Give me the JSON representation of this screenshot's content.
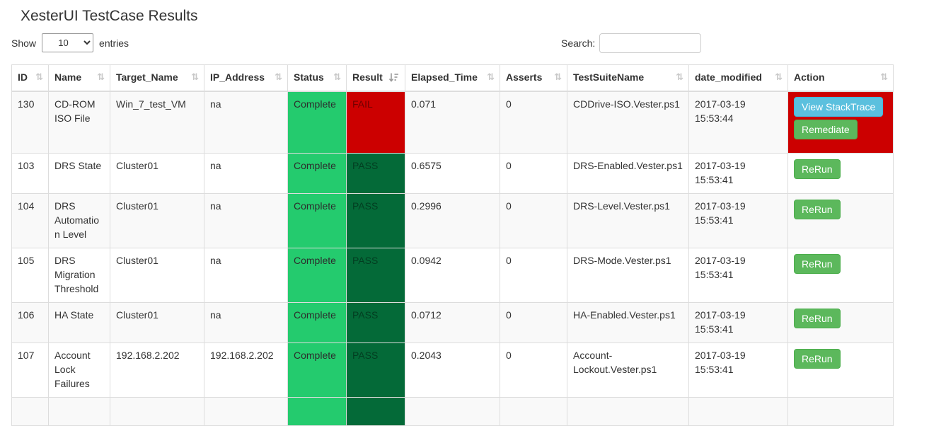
{
  "page": {
    "title": "XesterUI TestCase Results"
  },
  "controls": {
    "show_label": "Show",
    "entries_label": "entries",
    "page_size_selected": "10",
    "search_label": "Search:",
    "search_value": ""
  },
  "icons": {
    "sort_both": "⇅",
    "sort_amount_desc": "sort-amount-desc-icon",
    "select_chevron": "⌄"
  },
  "colors": {
    "status_complete_bg": "#24cb6e",
    "result_pass_bg": "#046a38",
    "result_fail_bg": "#cc0000",
    "action_alert_bg": "#cc0000",
    "button_info": "#5bc0de",
    "button_success": "#5cb85c",
    "header_text": "#333333",
    "stripe_row": "#f9f9f9",
    "table_border": "#dddddd"
  },
  "table": {
    "columns": [
      {
        "label": "ID",
        "sorted": false
      },
      {
        "label": "Name",
        "sorted": false
      },
      {
        "label": "Target_Name",
        "sorted": false
      },
      {
        "label": "IP_Address",
        "sorted": false
      },
      {
        "label": "Status",
        "sorted": false
      },
      {
        "label": "Result",
        "sorted": true
      },
      {
        "label": "Elapsed_Time",
        "sorted": false
      },
      {
        "label": "Asserts",
        "sorted": false
      },
      {
        "label": "TestSuiteName",
        "sorted": false
      },
      {
        "label": "date_modified",
        "sorted": false
      },
      {
        "label": "Action",
        "sorted": false
      }
    ],
    "rows": [
      {
        "id": "130",
        "name": "CD-ROM ISO File",
        "target_name": "Win_7_test_VM",
        "ip_address": "na",
        "status": "Complete",
        "result": "FAIL",
        "elapsed_time": "0.071",
        "asserts": "0",
        "test_suite_name": "CDDrive-ISO.Vester.ps1",
        "date_modified": "2017-03-19 15:53:44",
        "action_alert": true,
        "actions": [
          {
            "label": "View StackTrace",
            "type": "info",
            "name": "view-stacktrace-button"
          },
          {
            "label": "Remediate",
            "type": "success",
            "name": "remediate-button"
          }
        ]
      },
      {
        "id": "103",
        "name": "DRS State",
        "target_name": "Cluster01",
        "ip_address": "na",
        "status": "Complete",
        "result": "PASS",
        "elapsed_time": "0.6575",
        "asserts": "0",
        "test_suite_name": "DRS-Enabled.Vester.ps1",
        "date_modified": "2017-03-19 15:53:41",
        "action_alert": false,
        "actions": [
          {
            "label": "ReRun",
            "type": "success",
            "name": "rerun-button"
          }
        ]
      },
      {
        "id": "104",
        "name": "DRS Automation Level",
        "target_name": "Cluster01",
        "ip_address": "na",
        "status": "Complete",
        "result": "PASS",
        "elapsed_time": "0.2996",
        "asserts": "0",
        "test_suite_name": "DRS-Level.Vester.ps1",
        "date_modified": "2017-03-19 15:53:41",
        "action_alert": false,
        "actions": [
          {
            "label": "ReRun",
            "type": "success",
            "name": "rerun-button"
          }
        ]
      },
      {
        "id": "105",
        "name": "DRS Migration Threshold",
        "target_name": "Cluster01",
        "ip_address": "na",
        "status": "Complete",
        "result": "PASS",
        "elapsed_time": "0.0942",
        "asserts": "0",
        "test_suite_name": "DRS-Mode.Vester.ps1",
        "date_modified": "2017-03-19 15:53:41",
        "action_alert": false,
        "actions": [
          {
            "label": "ReRun",
            "type": "success",
            "name": "rerun-button"
          }
        ]
      },
      {
        "id": "106",
        "name": "HA State",
        "target_name": "Cluster01",
        "ip_address": "na",
        "status": "Complete",
        "result": "PASS",
        "elapsed_time": "0.0712",
        "asserts": "0",
        "test_suite_name": "HA-Enabled.Vester.ps1",
        "date_modified": "2017-03-19 15:53:41",
        "action_alert": false,
        "actions": [
          {
            "label": "ReRun",
            "type": "success",
            "name": "rerun-button"
          }
        ]
      },
      {
        "id": "107",
        "name": "Account Lock Failures",
        "target_name": "192.168.2.202",
        "ip_address": "192.168.2.202",
        "status": "Complete",
        "result": "PASS",
        "elapsed_time": "0.2043",
        "asserts": "0",
        "test_suite_name": "Account-Lockout.Vester.ps1",
        "date_modified": "2017-03-19 15:53:41",
        "action_alert": false,
        "actions": [
          {
            "label": "ReRun",
            "type": "success",
            "name": "rerun-button"
          }
        ]
      }
    ],
    "has_partial_row": true
  }
}
